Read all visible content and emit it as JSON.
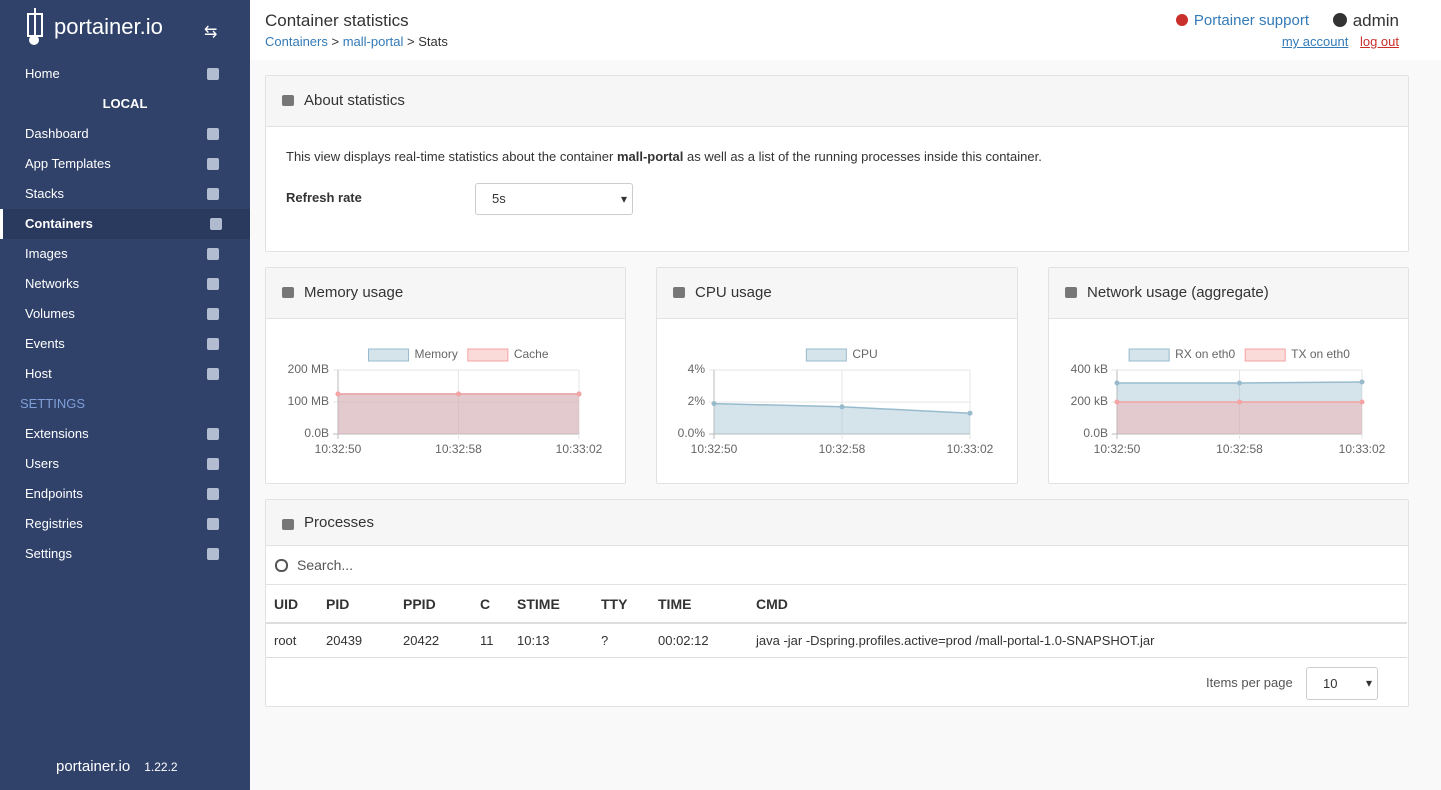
{
  "sidebar": {
    "brand": "portainer.io",
    "home": "Home",
    "endpoint": "LOCAL",
    "items": [
      "Dashboard",
      "App Templates",
      "Stacks",
      "Containers",
      "Images",
      "Networks",
      "Volumes",
      "Events",
      "Host"
    ],
    "active_index": 3,
    "settings_header": "SETTINGS",
    "settings_items": [
      "Extensions",
      "Users",
      "Endpoints",
      "Registries",
      "Settings"
    ],
    "footer_brand": "portainer.io",
    "version": "1.22.2"
  },
  "header": {
    "title": "Container statistics",
    "breadcrumb": [
      "Containers",
      "mall-portal",
      "Stats"
    ],
    "separator": ">",
    "support": "Portainer support",
    "user": "admin",
    "my_account": "my account",
    "log_out": "log out"
  },
  "about": {
    "title": "About statistics",
    "text_before": "This view displays real-time statistics about the container",
    "container": "mall-portal",
    "text_after": "as well as a list of the running processes inside this container.",
    "refresh_label": "Refresh rate",
    "refresh_value": "5s"
  },
  "chart_data": [
    {
      "type": "line",
      "title": "Memory usage",
      "x": [
        "10:32:50",
        "10:32:58",
        "10:33:02"
      ],
      "series": [
        {
          "name": "Memory",
          "color": "#97bbcd",
          "values": [
            125,
            125,
            125
          ]
        },
        {
          "name": "Cache",
          "color": "#f5a3a3",
          "values": [
            125,
            125,
            125
          ]
        }
      ],
      "ylim": [
        0,
        200
      ],
      "yticks": [
        {
          "value": 0,
          "label": "0.0B"
        },
        {
          "value": 100,
          "label": "100 MB"
        },
        {
          "value": 200,
          "label": "200 MB"
        }
      ],
      "grid": true
    },
    {
      "type": "line",
      "title": "CPU usage",
      "x": [
        "10:32:50",
        "10:32:58",
        "10:33:02"
      ],
      "series": [
        {
          "name": "CPU",
          "color": "#97bbcd",
          "values": [
            1.9,
            1.7,
            1.3
          ]
        }
      ],
      "ylim": [
        0,
        4
      ],
      "yticks": [
        {
          "value": 0,
          "label": "0.0%"
        },
        {
          "value": 2,
          "label": "2%"
        },
        {
          "value": 4,
          "label": "4%"
        }
      ],
      "grid": true
    },
    {
      "type": "line",
      "title": "Network usage (aggregate)",
      "x": [
        "10:32:50",
        "10:32:58",
        "10:33:02"
      ],
      "series": [
        {
          "name": "RX on eth0",
          "color": "#97bbcd",
          "values": [
            319,
            319,
            325
          ]
        },
        {
          "name": "TX on eth0",
          "color": "#f5a3a3",
          "values": [
            200,
            200,
            200
          ]
        }
      ],
      "ylim": [
        0,
        400
      ],
      "yticks": [
        {
          "value": 0,
          "label": "0.0B"
        },
        {
          "value": 200,
          "label": "200 kB"
        },
        {
          "value": 400,
          "label": "400 kB"
        }
      ],
      "grid": true
    }
  ],
  "processes": {
    "title": "Processes",
    "search_placeholder": "Search...",
    "columns": [
      "UID",
      "PID",
      "PPID",
      "C",
      "STIME",
      "TTY",
      "TIME",
      "CMD"
    ],
    "rows": [
      [
        "root",
        "20439",
        "20422",
        "11",
        "10:13",
        "?",
        "00:02:12",
        "java -jar -Dspring.profiles.active=prod /mall-portal-1.0-SNAPSHOT.jar"
      ]
    ],
    "items_per_page_label": "Items per page",
    "items_per_page": "10"
  }
}
